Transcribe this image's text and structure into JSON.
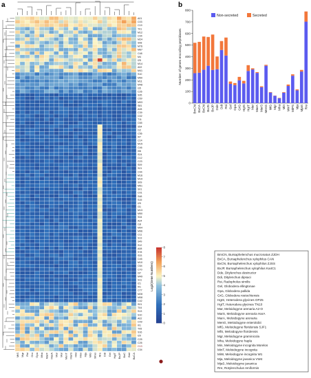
{
  "panel_a_label": "a",
  "panel_b_label": "b",
  "colorbar_title": "Log2(Gene Numbers)",
  "colorbar_ticks": [
    "0",
    "1",
    "2",
    "3",
    "4",
    "5",
    "6",
    "7",
    "8"
  ],
  "colors": {
    "non_secreted": "#5b5bef",
    "secreted": "#f2773b",
    "heat_low": "#2756a8",
    "heat_mid": "#fbf4c4",
    "heat_high": "#c83630",
    "highlight_dot": "#8b1a1a",
    "tree_highlight": "#2a9d8f"
  },
  "chart_data": [
    {
      "type": "heatmap",
      "columns": [
        "MtS",
        "Mgr",
        "Rsi",
        "Gro",
        "Gpa",
        "Mha",
        "MarF",
        "MarA",
        "Mar",
        "Mar",
        "MenT",
        "MarS",
        "Mnt",
        "Mnv",
        "Mja",
        "MiG",
        "Mmo",
        "Rre",
        "Ddi",
        "Gel",
        "HgIT",
        "BxJP",
        "BxC",
        "Bml",
        "BxCA"
      ],
      "rows": [
        "A01",
        "C03",
        "C19",
        "T01",
        "M12",
        "C04",
        "M24",
        "S08",
        "M76",
        "M67",
        "C48",
        "M4",
        "I25",
        "M14",
        "A02",
        "M41",
        "S10",
        "M50",
        "M11",
        "M48",
        "G5",
        "C26",
        "S35",
        "C69",
        "M03",
        "S81",
        "A28",
        "C39",
        "C02",
        "T11",
        "C65",
        "S54",
        "I12",
        "C56",
        "I07",
        "C14",
        "M15",
        "C46",
        "I06",
        "S24",
        "C12",
        "C23",
        "S09",
        "S21",
        "C44",
        "M16",
        "M19",
        "S09",
        "M51",
        "S01",
        "C01",
        "S48",
        "S15",
        "I29",
        "I31",
        "M13",
        "M50",
        "S34",
        "A24",
        "I18",
        "M04",
        "M96",
        "C11",
        "S13",
        "S49",
        "S12",
        "A08",
        "S78",
        "S33",
        "C45",
        "M10",
        "C64",
        "C70",
        "I37",
        "M49",
        "S11",
        "I21",
        "I01",
        "C77",
        "M28",
        "M08",
        "C42",
        "S01",
        "T04",
        "S13",
        "S10",
        "A02",
        "C09",
        "I01",
        "T05",
        "S16",
        "I20",
        "C25",
        "C26",
        "C13",
        "C34"
      ],
      "highlight_row": "C13",
      "values_log2_description_rows": "Log2(Gene Numbers)",
      "ylim": [
        0,
        8
      ],
      "legend": "Log2(Gene Numbers)",
      "highlight_column": "Rre"
    },
    {
      "type": "bar",
      "stacked": true,
      "ylabel": "Number of genes encoding peptidases",
      "ylim": [
        0,
        800
      ],
      "yticks": [
        0,
        100,
        200,
        300,
        400,
        500,
        600,
        700,
        800
      ],
      "categories": [
        "BmCN",
        "BxCA",
        "BxCN",
        "BxJS",
        "BxJP",
        "Dde",
        "Ddi",
        "Rsi",
        "Gel",
        "Gpa",
        "GrG",
        "HgIS",
        "HgIT",
        "Mar",
        "MarA",
        "MarS",
        "MenG",
        "MiG",
        "Mgr",
        "Mha",
        "Min",
        "MinT",
        "MiPS",
        "Mja",
        "MjaS",
        "Rre"
      ],
      "series": [
        {
          "name": "Non-secreted",
          "values": [
            258,
            262,
            288,
            322,
            286,
            292,
            458,
            410,
            166,
            155,
            196,
            170,
            277,
            290,
            260,
            137,
            322,
            91,
            63,
            42,
            89,
            148,
            236,
            110,
            272,
            702
          ]
        },
        {
          "name": "Secreted",
          "values": [
            262,
            266,
            286,
            248,
            305,
            110,
            77,
            155,
            20,
            18,
            30,
            22,
            50,
            10,
            7,
            8,
            8,
            4,
            2,
            3,
            5,
            12,
            12,
            8,
            14,
            88
          ]
        }
      ],
      "legend_position": "top"
    }
  ],
  "species_legend": [
    "BmCN, Bursaphelenchus mucronatus ZJDH",
    "BxCA, Bursaphelenchus xylophilus CAN",
    "BxCN, Bursaphelenchus xylophilus ZJSS",
    "BxJP, Bursaphelenchus xylophilus Ka4C1",
    "Dde, Ditylenchus destructor",
    "Ddi, Ditylenchus dipsaci",
    "Rsi, Radopholus similis",
    "Gel, Globodera ellingtonae",
    "Gpa, Globodera pallida",
    "GrG, Globodera rostochiensis",
    "HgIS, Heterodera glycines OP25",
    "HgIT, Heterodera glycines TN10",
    "Mar, Meloidogyne arenaria A2-O",
    "MarS, Meloidogyne arenaria HarA",
    "MarA, Meloidogyne arenaria",
    "MenG, Meloidogyne enterolobii",
    "MfG, Meloidogyne floridensis SJF1",
    "MfS, Meloidogyne floridensis",
    "Mgr, Meloidogyne graminicola",
    "Mha, Meloidogyne hapla",
    "Min, Meloidogyne incognita Morelos",
    "MinT, Meloidogyne incognita",
    "MiW, Meloidogyne incognita W1",
    "Mja, Meloidogyne javanica VW4",
    "MjaS, Meloidogyne javanica",
    "Rre, Rotylenchulus reniformis"
  ]
}
